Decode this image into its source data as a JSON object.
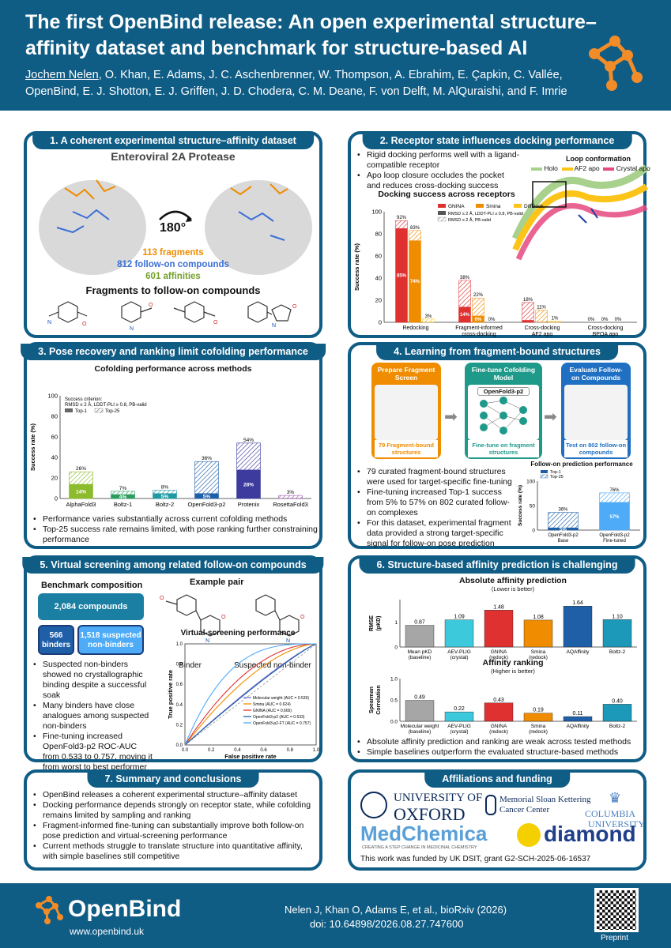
{
  "header": {
    "title": "The first OpenBind release: An open experimental structure–affinity dataset and benchmark for structure-based AI",
    "first_author": "Jochem Nelen",
    "authors_rest": ", O. Khan, E. Adams, J. C. Aschenbrenner, W. Thompson, A. Ebrahim, E. Çapkin, C. Vallée, OpenBind, E. J. Shotton, E. J. Griffen, J. D. Chodera, C. M. Deane, F. von Delft, M. AlQuraishi, and F. Imrie"
  },
  "p1": {
    "title": "1. A coherent experimental structure–affinity dataset",
    "subtitle": "Enteroviral 2A Protease",
    "rotation": "180°",
    "fragments": "113 fragments",
    "followon": "812 follow-on compounds",
    "affinities": "601 affinities",
    "caption": "Fragments to follow-on compounds"
  },
  "p2": {
    "title": "2. Receptor state influences docking performance",
    "bullets": [
      "Rigid docking performs well with a ligand-compatible receptor",
      "Apo loop closure occludes the pocket and reduces cross-docking success"
    ],
    "chart_title": "Docking success across receptors",
    "loop_title": "Loop conformation",
    "loop_legend": [
      "Holo",
      "AF2 apo",
      "Crystal apo"
    ],
    "legend_methods": [
      "GNINA",
      "Smina",
      "DiffDock"
    ],
    "legend_crit": [
      "RMSD ≤ 2 Å, LDDT-PLI ≥ 0.8, PB-valid",
      "RMSD ≤ 2 Å, PB-valid"
    ],
    "ylabel": "Success rate (%)",
    "yticks": [
      "0",
      "20",
      "40",
      "60",
      "80",
      "100"
    ],
    "colors": {
      "gnina": "#e03131",
      "smina": "#f08c00",
      "diffdock": "#fcc419"
    }
  },
  "p3": {
    "title": "3. Pose recovery and ranking limit cofolding performance",
    "chart_title": "Cofolding performance across methods",
    "criterion": "Success criterion:",
    "criterion_detail": "RMSD ≤ 2 Å, LDDT-PLI ≥ 0.8, PB-valid",
    "legend": [
      "Top-1",
      "Top-25"
    ],
    "ylabel": "Success rate (%)",
    "yticks": [
      "0",
      "20",
      "40",
      "60",
      "80",
      "100"
    ],
    "bullets": [
      "Performance varies substantially across current cofolding methods",
      "Top-25 success rate remains limited, with pose ranking further constraining performance"
    ]
  },
  "p4": {
    "title": "4. Learning from fragment-bound structures",
    "step1_title": "Prepare Fragment Screen",
    "step1_caption": "79 Fragment-bound structures",
    "step2_title": "Fine-tune Cofolding Model",
    "step2_model": "OpenFold3-p2",
    "step2_caption": "Fine-tune on fragment structures",
    "step3_title": "Evaluate Follow-on Compounds",
    "step3_caption": "Test on 802 follow-on compounds",
    "chart_title": "Follow-on prediction performance",
    "legend": [
      "Top-1",
      "Top-25"
    ],
    "ylabel": "Success rate (%)",
    "yticks": [
      "0",
      "50",
      "100"
    ],
    "bullets": [
      "79 curated fragment-bound structures were used for target-specific fine-tuning",
      "Fine-tuning increased Top-1 success from 5% to 57% on 802 curated follow-on complexes",
      "For this dataset, experimental fragment data provided a strong target-specific signal for follow-on pose prediction"
    ]
  },
  "p5": {
    "title": "5. Virtual screening among related follow-on compounds",
    "bench_title": "Benchmark composition",
    "total": "2,084 compounds",
    "binders": "566 binders",
    "nonbinders": "1,518 suspected non-binders",
    "pair_title": "Example pair",
    "binder_label": "Binder",
    "nonbinder_label": "Suspected non-binder",
    "chart_title": "Virtual-screening performance",
    "xlabel": "False positive rate",
    "ylabel": "True positive rate",
    "ticks": [
      "0.0",
      "0.2",
      "0.4",
      "0.6",
      "0.8",
      "1.0"
    ],
    "legend": [
      "Molecular weight (AUC = 0.539)",
      "Smina (AUC = 0.624)",
      "GNINA (AUC = 0.665)",
      "OpenFold3-p2 (AUC = 0.533)",
      "OpenFold3-p2-FT (AUC = 0.757)"
    ],
    "bullets": [
      "Suspected non-binders showed no crystallographic binding despite a successful soak",
      "Many binders have close analogues among suspected non-binders",
      "Fine-tuning increased OpenFold3-p2 ROC-AUC from 0.533 to 0.757, moving it from worst to best performer"
    ]
  },
  "p6": {
    "title": "6. Structure-based affinity prediction is challenging",
    "chart1_title": "Absolute affinity prediction",
    "chart1_sub": "(Lower is better)",
    "chart1_ylabel": "RMSE (pK<sub>D</sub>)",
    "chart1_ylabel_text": "RMSE (pKD)",
    "chart1_yticks": [
      "0",
      "1"
    ],
    "chart2_title": "Affinity ranking",
    "chart2_sub": "(Higher is better)",
    "chart2_ylabel": "Spearman Correlation",
    "chart2_yticks": [
      "0.0",
      "0.5",
      "1.0"
    ],
    "bullets": [
      "Absolute affinity prediction and ranking are weak across tested methods",
      "Simple baselines outperform the evaluated structure-based methods"
    ]
  },
  "p7": {
    "title": "7. Summary and conclusions",
    "bullets": [
      "OpenBind releases a coherent experimental structure–affinity dataset",
      "Docking performance depends strongly on receptor state, while cofolding remains limited by sampling and ranking",
      "Fragment-informed fine-tuning can substantially improve both follow-on pose prediction and virtual-screening performance",
      "Current methods struggle to translate structure into quantitative affinity, with simple baselines still competitive"
    ]
  },
  "p8": {
    "title": "Affiliations and funding",
    "oxford1": "UNIVERSITY OF",
    "oxford2": "OXFORD",
    "mskcc1": "Memorial Sloan Kettering",
    "mskcc2": "Cancer Center",
    "columbia1": "COLUMBIA",
    "columbia2": "UNIVERSITY",
    "medchem": "MedChemica",
    "medchem_tag": "CREATING A STEP CHANGE IN MEDICINAL CHEMISTRY",
    "diamond": "diamond",
    "funding": "This work was funded by UK DSIT, grant G2-SCH-2025-06-16537"
  },
  "footer": {
    "brand": "OpenBind",
    "url": "www.openbind.uk",
    "citation": "Nelen J, Khan O, Adams E, et al., bioRxiv (2026)",
    "doi": "doi: 10.64898/2026.08.27.747600",
    "preprint": "Preprint"
  },
  "chart_data": [
    {
      "type": "bar",
      "title": "Docking success across receptors",
      "categories": [
        "Redocking",
        "Fragment-informed cross-docking",
        "Cross-docking AF2 apo",
        "Cross-docking BPOA apo"
      ],
      "series": [
        {
          "name": "GNINA",
          "strict": [
            85,
            14,
            2,
            0
          ],
          "loose": [
            92,
            38,
            18,
            0
          ]
        },
        {
          "name": "Smina",
          "strict": [
            74,
            6,
            0,
            0
          ],
          "loose": [
            83,
            22,
            11,
            0
          ]
        },
        {
          "name": "DiffDock",
          "strict": [
            0,
            0,
            0,
            0
          ],
          "loose": [
            3,
            0,
            1,
            0
          ]
        }
      ],
      "ylabel": "Success rate (%)",
      "ylim": [
        0,
        100
      ]
    },
    {
      "type": "bar",
      "title": "Cofolding performance across methods",
      "categories": [
        "AlphaFold3",
        "Boltz-1",
        "Boltz-2",
        "OpenFold3-p2",
        "Protenix",
        "RosettaFold3"
      ],
      "series": [
        {
          "name": "Top-1",
          "values": [
            14,
            4,
            5,
            5,
            28,
            0
          ]
        },
        {
          "name": "Top-25",
          "values": [
            26,
            7,
            8,
            36,
            54,
            3
          ]
        }
      ],
      "colors": [
        "#8dbb2e",
        "#2a9d5c",
        "#1f9aa3",
        "#1f5fa8",
        "#3d3b9e",
        "#a25fb0"
      ],
      "ylabel": "Success rate (%)",
      "ylim": [
        0,
        100
      ]
    },
    {
      "type": "bar",
      "title": "Follow-on prediction performance",
      "categories": [
        "OpenFold3-p2 Base",
        "OpenFold3-p2 Fine-tuned"
      ],
      "series": [
        {
          "name": "Top-1",
          "values": [
            5,
            57
          ]
        },
        {
          "name": "Top-25",
          "values": [
            36,
            76
          ]
        }
      ],
      "ylabel": "Success rate (%)",
      "ylim": [
        0,
        100
      ]
    },
    {
      "type": "line",
      "title": "Virtual-screening performance",
      "xlabel": "False positive rate",
      "ylabel": "True positive rate",
      "xlim": [
        0,
        1
      ],
      "ylim": [
        0,
        1
      ],
      "series": [
        {
          "name": "Molecular weight (AUC = 0.539)",
          "auc": 0.539,
          "color": "#7b6fd0"
        },
        {
          "name": "Smina (AUC = 0.624)",
          "auc": 0.624,
          "color": "#f08c00"
        },
        {
          "name": "GNINA (AUC = 0.665)",
          "auc": 0.665,
          "color": "#e03131"
        },
        {
          "name": "OpenFold3-p2 (AUC = 0.533)",
          "auc": 0.533,
          "color": "#1f5fa8"
        },
        {
          "name": "OpenFold3-p2-FT (AUC = 0.757)",
          "auc": 0.757,
          "color": "#4dabf7"
        }
      ]
    },
    {
      "type": "bar",
      "title": "Absolute affinity prediction",
      "categories": [
        "Mean pKD (baseline)",
        "AEV-PLIG (crystal)",
        "GNINA (redock)",
        "Smina (redock)",
        "AQAffinity",
        "Boltz-2"
      ],
      "values": [
        0.87,
        1.09,
        1.48,
        1.08,
        1.64,
        1.1
      ],
      "colors": [
        "#a6a6a6",
        "#3bc9db",
        "#e03131",
        "#f08c00",
        "#1f5fa8",
        "#1c98b8"
      ],
      "ylabel": "RMSE (pKD)"
    },
    {
      "type": "bar",
      "title": "Affinity ranking",
      "categories": [
        "Molecular weight (baseline)",
        "AEV-PLIG (crystal)",
        "GNINA (redock)",
        "Smina (redock)",
        "AQAffinity",
        "Boltz-2"
      ],
      "values": [
        0.49,
        0.22,
        0.43,
        0.19,
        0.11,
        0.4
      ],
      "colors": [
        "#a6a6a6",
        "#3bc9db",
        "#e03131",
        "#f08c00",
        "#1f5fa8",
        "#1c98b8"
      ],
      "ylabel": "Spearman Correlation",
      "ylim": [
        0,
        1
      ]
    }
  ]
}
